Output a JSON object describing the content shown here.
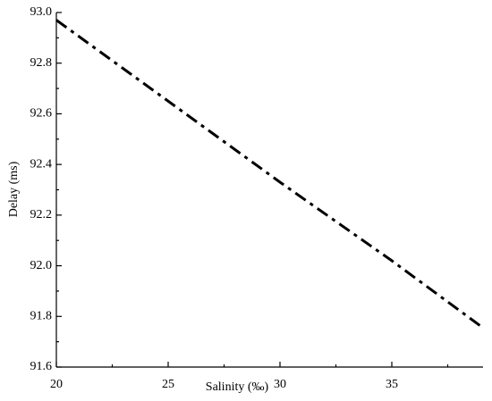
{
  "chart_data": {
    "type": "line",
    "x_label": "Salinity (‰)",
    "y_label": "Delay (ms)",
    "x": [
      20,
      25,
      30,
      35,
      39
    ],
    "series": [
      {
        "name": "Delay",
        "color": "#000000",
        "values": [
          92.97,
          92.65,
          92.33,
          92.02,
          91.76
        ]
      }
    ],
    "xlim": [
      20,
      39
    ],
    "xticks": [
      20,
      25,
      30,
      35
    ],
    "ylim": [
      91.6,
      93.0
    ],
    "yticks": [
      {
        "value": 91.6,
        "label": "91.6"
      },
      {
        "value": 91.8,
        "label": "91.8"
      },
      {
        "value": 92.0,
        "label": "92.0"
      },
      {
        "value": 92.2,
        "label": "92.2"
      },
      {
        "value": 92.4,
        "label": "92.4"
      },
      {
        "value": 92.6,
        "label": "92.6"
      },
      {
        "value": 92.8,
        "label": "92.8"
      },
      {
        "value": 93.0,
        "label": "93.0"
      }
    ],
    "line_style": "dashdot",
    "grid": false
  }
}
